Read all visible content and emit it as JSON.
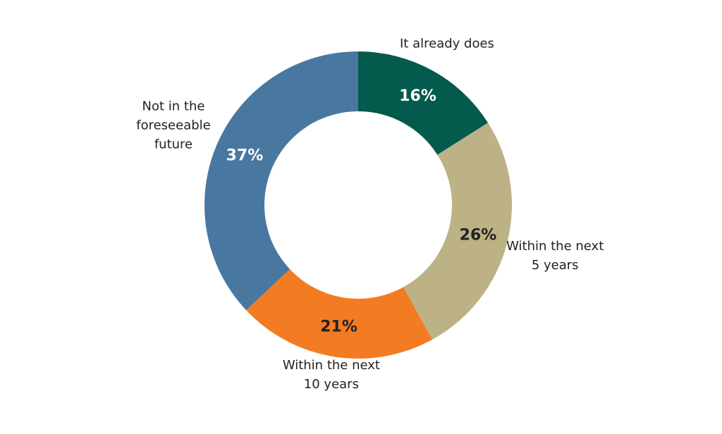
{
  "chart_data": {
    "type": "donut",
    "categories": [
      "It already does",
      "Within the next 5 years",
      "Within the next 10 years",
      "Not in the foreseeable future"
    ],
    "values": [
      16,
      26,
      21,
      37
    ],
    "value_labels": [
      "16%",
      "26%",
      "21%",
      "37%"
    ],
    "colors": [
      "#045a4c",
      "#bdb285",
      "#f37b21",
      "#4878a0"
    ]
  }
}
